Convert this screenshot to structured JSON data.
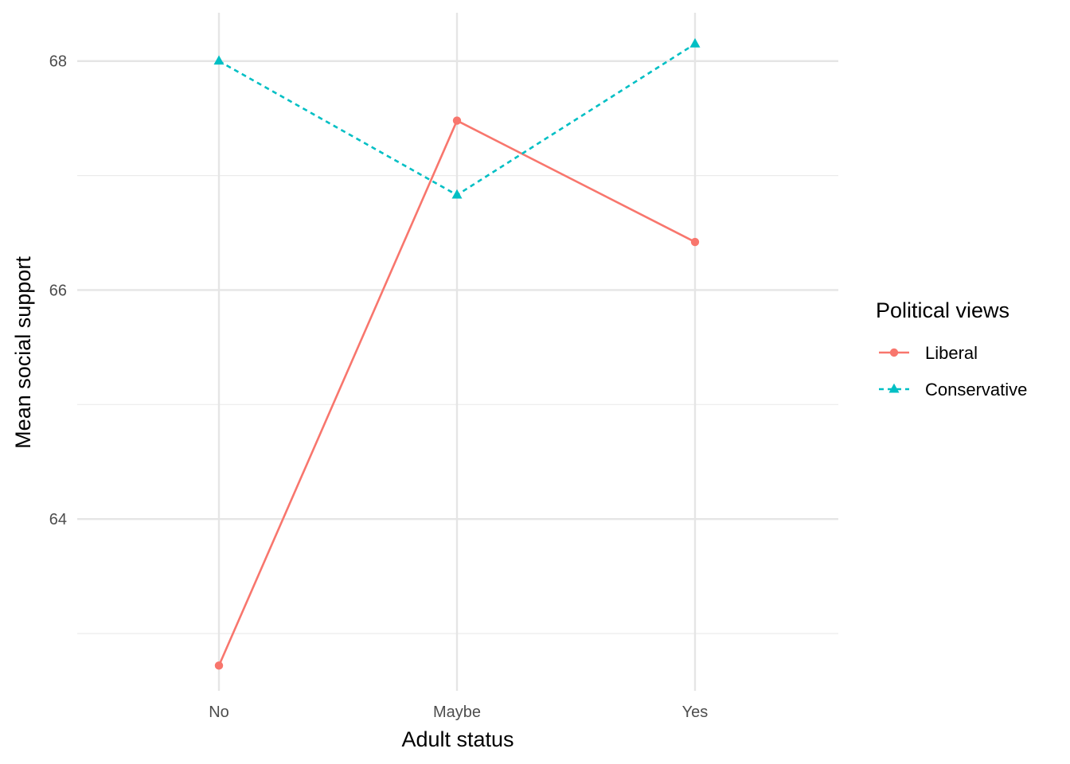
{
  "chart_data": {
    "type": "line",
    "title": "",
    "xlabel": "Adult status",
    "ylabel": "Mean social support",
    "categories": [
      "No",
      "Maybe",
      "Yes"
    ],
    "ylim": [
      62.5,
      68.45
    ],
    "yticks": [
      64,
      66,
      68
    ],
    "grid": true,
    "legend": {
      "title": "Political views",
      "placement": "right"
    },
    "series": [
      {
        "name": "Liberal",
        "values": [
          62.72,
          67.48,
          66.42
        ],
        "color": "#F8766D",
        "linestyle": "solid",
        "marker": "circle"
      },
      {
        "name": "Conservative",
        "values": [
          68.0,
          66.83,
          68.15
        ],
        "color": "#00BFC4",
        "linestyle": "dashed",
        "marker": "triangle"
      }
    ]
  }
}
